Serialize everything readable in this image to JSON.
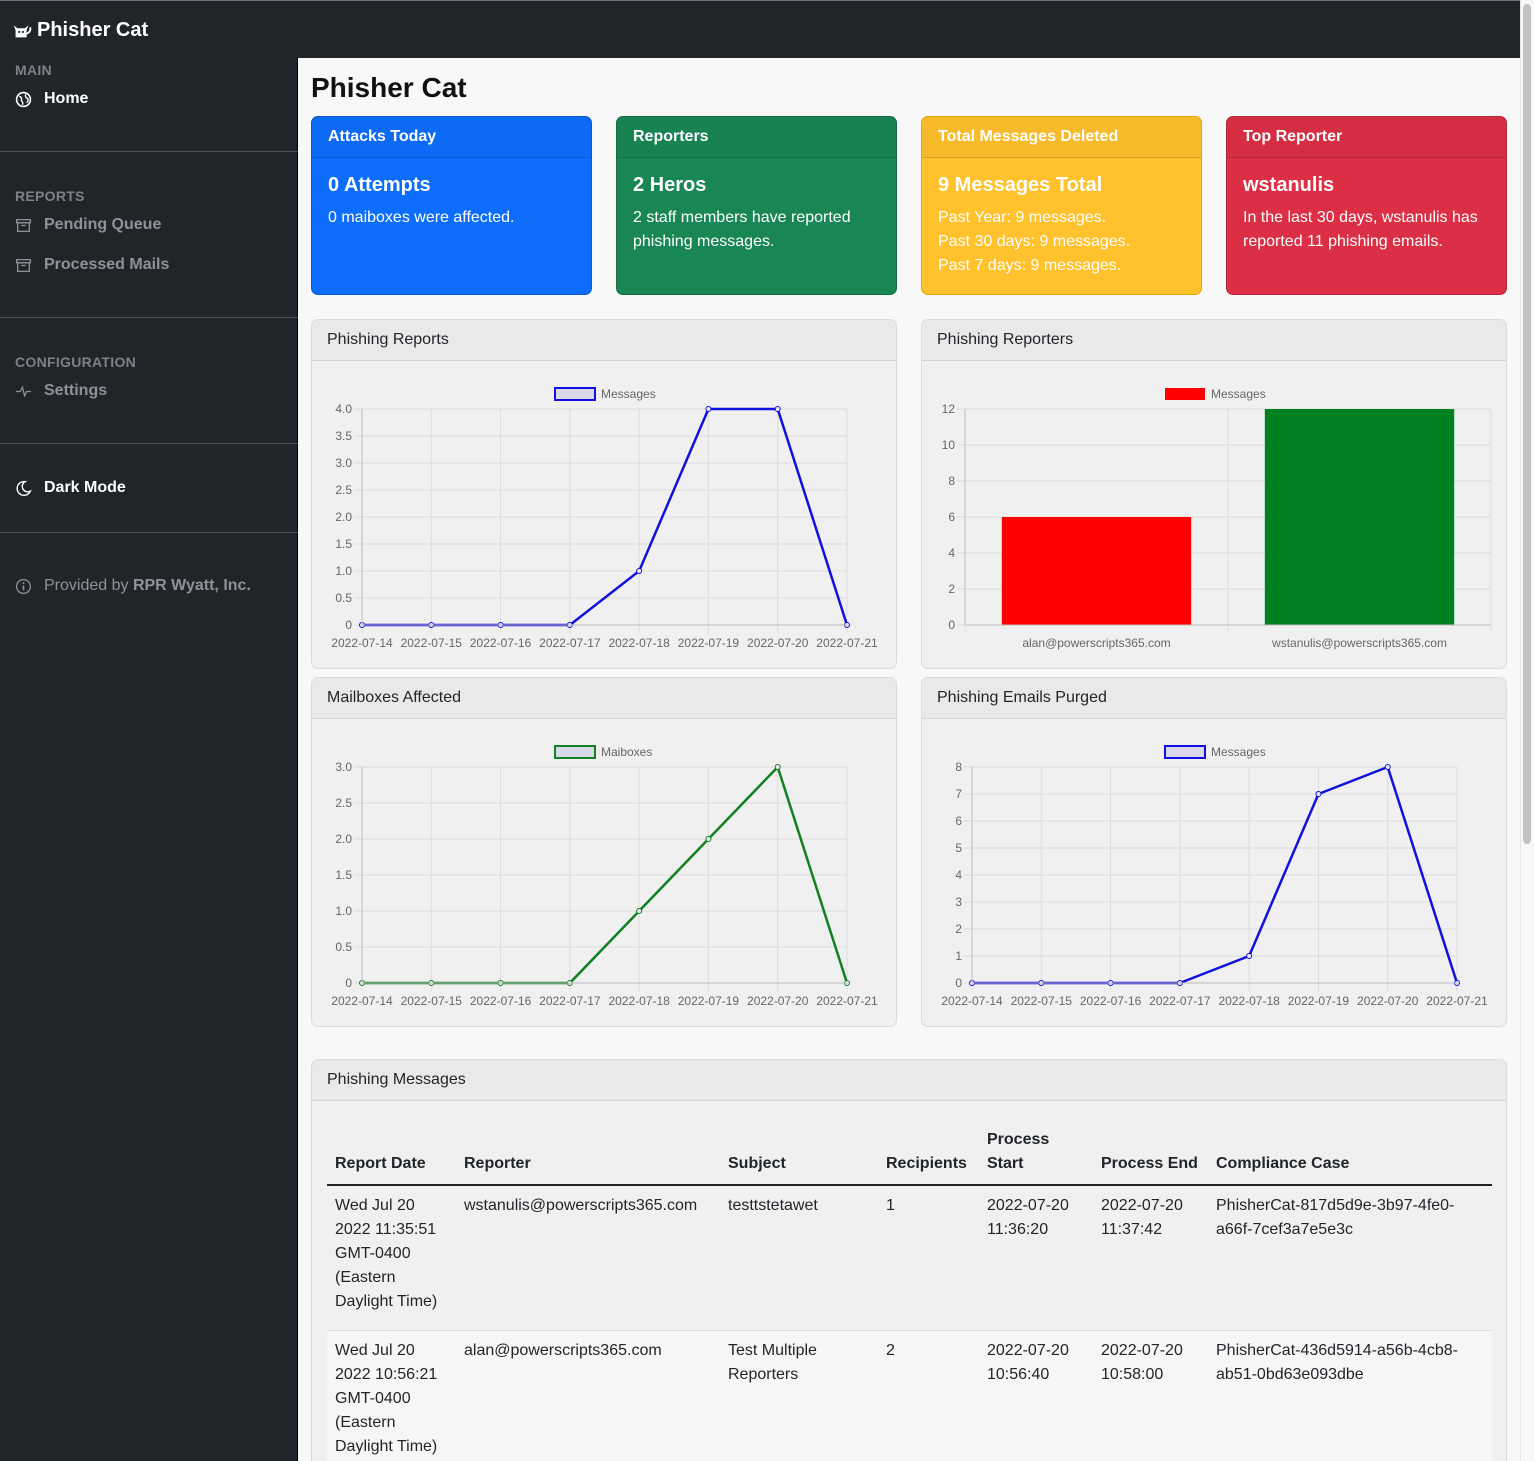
{
  "brand": {
    "name": "Phisher Cat"
  },
  "sidebar": {
    "main_heading": "MAIN",
    "home": "Home",
    "reports_heading": "REPORTS",
    "pending": "Pending Queue",
    "processed": "Processed Mails",
    "config_heading": "CONFIGURATION",
    "settings": "Settings",
    "dark_mode": "Dark Mode",
    "provided_prefix": "Provided by ",
    "provided_company": "RPR Wyatt, Inc."
  },
  "page": {
    "title": "Phisher Cat"
  },
  "cards": {
    "attacks": {
      "header": "Attacks Today",
      "title": "0 Attempts",
      "text": "0 maiboxes were affected."
    },
    "reporters": {
      "header": "Reporters",
      "title": "2 Heros",
      "text": "2 staff members have reported phishing messages."
    },
    "deleted": {
      "header": "Total Messages Deleted",
      "title": "9 Messages Total",
      "line1": "Past Year: 9 messages.",
      "line2": "Past 30 days: 9 messages.",
      "line3": "Past 7 days: 9 messages."
    },
    "top": {
      "header": "Top Reporter",
      "title": "wstanulis",
      "text": "In the last 30 days, wstanulis has reported 11 phishing emails."
    }
  },
  "panels": {
    "reports": "Phishing Reports",
    "reporters": "Phishing Reporters",
    "mailboxes": "Mailboxes Affected",
    "purged": "Phishing Emails Purged",
    "messages": "Phishing Messages"
  },
  "chart_data": [
    {
      "id": "phishing-reports",
      "type": "line",
      "x": [
        "2022-07-14",
        "2022-07-15",
        "2022-07-16",
        "2022-07-17",
        "2022-07-18",
        "2022-07-19",
        "2022-07-20",
        "2022-07-21"
      ],
      "series": [
        {
          "name": "Messages",
          "values": [
            0,
            0,
            0,
            0,
            1,
            4,
            4,
            0
          ],
          "color": "#1010e0"
        }
      ],
      "ylim": [
        0,
        4
      ],
      "yticks": [
        0,
        0.5,
        1.0,
        1.5,
        2.0,
        2.5,
        3.0,
        3.5,
        4.0
      ],
      "ytick_labels": [
        "0",
        "0.5",
        "1.0",
        "1.5",
        "2.0",
        "2.5",
        "3.0",
        "3.5",
        "4.0"
      ],
      "legend": "top",
      "grid": true
    },
    {
      "id": "phishing-reporters",
      "type": "bar",
      "categories": [
        "alan@powerscripts365.com",
        "wstanulis@powerscripts365.com"
      ],
      "series": [
        {
          "name": "Messages",
          "values": [
            6,
            12
          ],
          "colors": [
            "#ff0000",
            "#008020"
          ]
        }
      ],
      "ylim": [
        0,
        12
      ],
      "yticks": [
        0,
        2,
        4,
        6,
        8,
        10,
        12
      ],
      "ytick_labels": [
        "0",
        "2",
        "4",
        "6",
        "8",
        "10",
        "12"
      ],
      "legend": "top",
      "legend_color": "#ff0000",
      "grid": true
    },
    {
      "id": "mailboxes-affected",
      "type": "line",
      "x": [
        "2022-07-14",
        "2022-07-15",
        "2022-07-16",
        "2022-07-17",
        "2022-07-18",
        "2022-07-19",
        "2022-07-20",
        "2022-07-21"
      ],
      "series": [
        {
          "name": "Maiboxes",
          "values": [
            0,
            0,
            0,
            0,
            1,
            2,
            3,
            0
          ],
          "color": "#108020"
        }
      ],
      "ylim": [
        0,
        3
      ],
      "yticks": [
        0,
        0.5,
        1.0,
        1.5,
        2.0,
        2.5,
        3.0
      ],
      "ytick_labels": [
        "0",
        "0.5",
        "1.0",
        "1.5",
        "2.0",
        "2.5",
        "3.0"
      ],
      "legend": "top",
      "grid": true
    },
    {
      "id": "emails-purged",
      "type": "line",
      "x": [
        "2022-07-14",
        "2022-07-15",
        "2022-07-16",
        "2022-07-17",
        "2022-07-18",
        "2022-07-19",
        "2022-07-20",
        "2022-07-21"
      ],
      "series": [
        {
          "name": "Messages",
          "values": [
            0,
            0,
            0,
            0,
            1,
            7,
            8,
            0
          ],
          "color": "#1010e0"
        }
      ],
      "ylim": [
        0,
        8
      ],
      "yticks": [
        0,
        1,
        2,
        3,
        4,
        5,
        6,
        7,
        8
      ],
      "ytick_labels": [
        "0",
        "1",
        "2",
        "3",
        "4",
        "5",
        "6",
        "7",
        "8"
      ],
      "legend": "top",
      "grid": true
    }
  ],
  "table": {
    "headers": [
      "Report Date",
      "Reporter",
      "Subject",
      "Recipients",
      "Process Start",
      "Process End",
      "Compliance Case"
    ],
    "rows": [
      {
        "date": "Wed Jul 20 2022 11:35:51 GMT-0400 (Eastern Daylight Time)",
        "reporter": "wstanulis@powerscripts365.com",
        "subject": "testtstetawet",
        "recipients": "1",
        "start": "2022-07-20 11:36:20",
        "end": "2022-07-20 11:37:42",
        "case": "PhisherCat-817d5d9e-3b97-4fe0-a66f-7cef3a7e5e3c"
      },
      {
        "date": "Wed Jul 20 2022 10:56:21 GMT-0400 (Eastern Daylight Time)",
        "reporter": "alan@powerscripts365.com",
        "subject": "Test Multiple Reporters",
        "recipients": "2",
        "start": "2022-07-20 10:56:40",
        "end": "2022-07-20 10:58:00",
        "case": "PhisherCat-436d5914-a56b-4cb8-ab51-0bd63e093dbe"
      }
    ]
  }
}
